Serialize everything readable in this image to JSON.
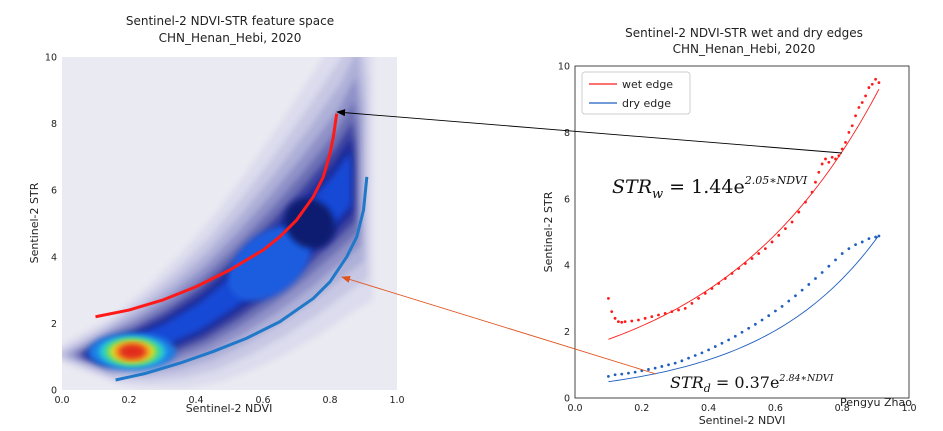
{
  "colors": {
    "wet_edge": "#ff1a1a",
    "dry_edge": "#1f5fbf",
    "left_panel_bg": "#eaeaf2",
    "arrow_black": "#000000",
    "arrow_orange": "#e0531d"
  },
  "chart_data": [
    {
      "type": "area",
      "title": "Sentinel-2 NDVI-STR feature space",
      "subtitle": "CHN_Henan_Hebi, 2020",
      "xlabel": "Sentinel-2 NDVI",
      "ylabel": "Sentinel-2 STR",
      "xlim": [
        0.0,
        1.0
      ],
      "ylim": [
        0,
        10
      ],
      "xticks": [
        "0.0",
        "0.2",
        "0.4",
        "0.6",
        "0.8",
        "1.0"
      ],
      "yticks": [
        "0",
        "2",
        "4",
        "6",
        "8",
        "10"
      ],
      "grid": false,
      "density": {
        "peak": {
          "x": 0.2,
          "y": 1.15
        },
        "ridge_x": [
          0.1,
          0.2,
          0.3,
          0.4,
          0.5,
          0.6,
          0.7,
          0.8,
          0.85
        ],
        "ridge_y": [
          1.05,
          1.25,
          1.6,
          2.1,
          2.8,
          3.6,
          4.5,
          5.5,
          6.1
        ]
      },
      "series": [
        {
          "name": "wet edge",
          "x": [
            0.1,
            0.2,
            0.3,
            0.4,
            0.5,
            0.6,
            0.65,
            0.7,
            0.75,
            0.78,
            0.8,
            0.81,
            0.82
          ],
          "y": [
            2.2,
            2.4,
            2.7,
            3.1,
            3.6,
            4.2,
            4.6,
            5.1,
            5.8,
            6.4,
            7.1,
            7.6,
            8.3
          ]
        },
        {
          "name": "dry edge",
          "x": [
            0.16,
            0.25,
            0.35,
            0.45,
            0.55,
            0.65,
            0.75,
            0.8,
            0.85,
            0.88,
            0.9,
            0.91
          ],
          "y": [
            0.3,
            0.5,
            0.8,
            1.15,
            1.55,
            2.05,
            2.75,
            3.25,
            4.0,
            4.6,
            5.4,
            6.4
          ]
        }
      ]
    },
    {
      "type": "scatter",
      "title": "Sentinel-2 NDVI-STR wet and dry edges",
      "subtitle": "CHN_Henan_Hebi, 2020",
      "xlabel": "Sentinel-2 NDVI",
      "ylabel": "Sentinel-2 STR",
      "xlim": [
        0.0,
        1.0
      ],
      "ylim": [
        0,
        10
      ],
      "xticks": [
        "0.0",
        "0.2",
        "0.4",
        "0.6",
        "0.8",
        "1.0"
      ],
      "yticks": [
        "0",
        "2",
        "4",
        "6",
        "8",
        "10"
      ],
      "grid": false,
      "legend": {
        "placement": "top-left",
        "entries": [
          "wet edge",
          "dry edge"
        ]
      },
      "annotations": {
        "wet_equation": {
          "lhs": "STR",
          "sub": "w",
          "rhs": " = 1.44e",
          "sup": "2.05∗NDVI"
        },
        "dry_equation": {
          "lhs": "STR",
          "sub": "d",
          "rhs": " = 0.37e",
          "sup": "2.84∗NDVI"
        },
        "author": "Pengyu Zhao"
      },
      "series": [
        {
          "name": "wet edge points",
          "x": [
            0.1,
            0.11,
            0.12,
            0.13,
            0.14,
            0.15,
            0.17,
            0.19,
            0.21,
            0.23,
            0.25,
            0.27,
            0.29,
            0.31,
            0.33,
            0.35,
            0.37,
            0.39,
            0.41,
            0.43,
            0.45,
            0.47,
            0.49,
            0.51,
            0.53,
            0.55,
            0.57,
            0.59,
            0.61,
            0.63,
            0.65,
            0.67,
            0.69,
            0.71,
            0.72,
            0.73,
            0.74,
            0.75,
            0.76,
            0.77,
            0.78,
            0.79,
            0.8,
            0.81,
            0.82,
            0.83,
            0.84,
            0.85,
            0.86,
            0.87,
            0.88,
            0.89,
            0.9,
            0.91
          ],
          "y": [
            3.0,
            2.6,
            2.4,
            2.3,
            2.28,
            2.3,
            2.32,
            2.35,
            2.4,
            2.45,
            2.5,
            2.55,
            2.6,
            2.65,
            2.7,
            2.85,
            3.0,
            3.15,
            3.3,
            3.45,
            3.6,
            3.75,
            3.9,
            4.05,
            4.2,
            4.35,
            4.5,
            4.7,
            4.9,
            5.1,
            5.3,
            5.6,
            5.9,
            6.2,
            6.5,
            6.8,
            7.05,
            7.2,
            7.1,
            7.25,
            7.2,
            7.3,
            7.5,
            7.7,
            8.0,
            8.2,
            8.5,
            8.75,
            8.9,
            9.1,
            9.35,
            9.45,
            9.6,
            9.5
          ]
        },
        {
          "name": "dry edge points",
          "x": [
            0.1,
            0.12,
            0.14,
            0.16,
            0.18,
            0.2,
            0.22,
            0.24,
            0.26,
            0.28,
            0.3,
            0.32,
            0.34,
            0.36,
            0.38,
            0.4,
            0.42,
            0.44,
            0.46,
            0.48,
            0.5,
            0.52,
            0.54,
            0.56,
            0.58,
            0.6,
            0.62,
            0.64,
            0.66,
            0.68,
            0.7,
            0.72,
            0.74,
            0.76,
            0.78,
            0.8,
            0.82,
            0.84,
            0.86,
            0.88,
            0.9,
            0.91
          ],
          "y": [
            0.65,
            0.7,
            0.72,
            0.75,
            0.78,
            0.82,
            0.86,
            0.9,
            0.95,
            1.0,
            1.05,
            1.12,
            1.2,
            1.28,
            1.36,
            1.45,
            1.55,
            1.65,
            1.75,
            1.86,
            1.98,
            2.1,
            2.22,
            2.35,
            2.48,
            2.62,
            2.76,
            2.92,
            3.08,
            3.25,
            3.42,
            3.6,
            3.78,
            3.97,
            4.16,
            4.35,
            4.5,
            4.62,
            4.7,
            4.8,
            4.85,
            4.88
          ]
        },
        {
          "name": "wet edge",
          "fit": {
            "a": 1.44,
            "b": 2.05
          },
          "x": [
            0.1,
            0.2,
            0.3,
            0.4,
            0.5,
            0.6,
            0.7,
            0.8,
            0.91
          ],
          "y": [
            1.77,
            2.16,
            2.66,
            3.26,
            4.01,
            4.92,
            6.04,
            7.42,
            9.26
          ]
        },
        {
          "name": "dry edge",
          "fit": {
            "a": 0.37,
            "b": 2.84
          },
          "x": [
            0.1,
            0.2,
            0.3,
            0.4,
            0.5,
            0.6,
            0.7,
            0.8,
            0.91
          ],
          "y": [
            0.49,
            0.65,
            0.87,
            1.15,
            1.53,
            2.04,
            2.71,
            3.6,
            4.91
          ]
        }
      ]
    }
  ]
}
